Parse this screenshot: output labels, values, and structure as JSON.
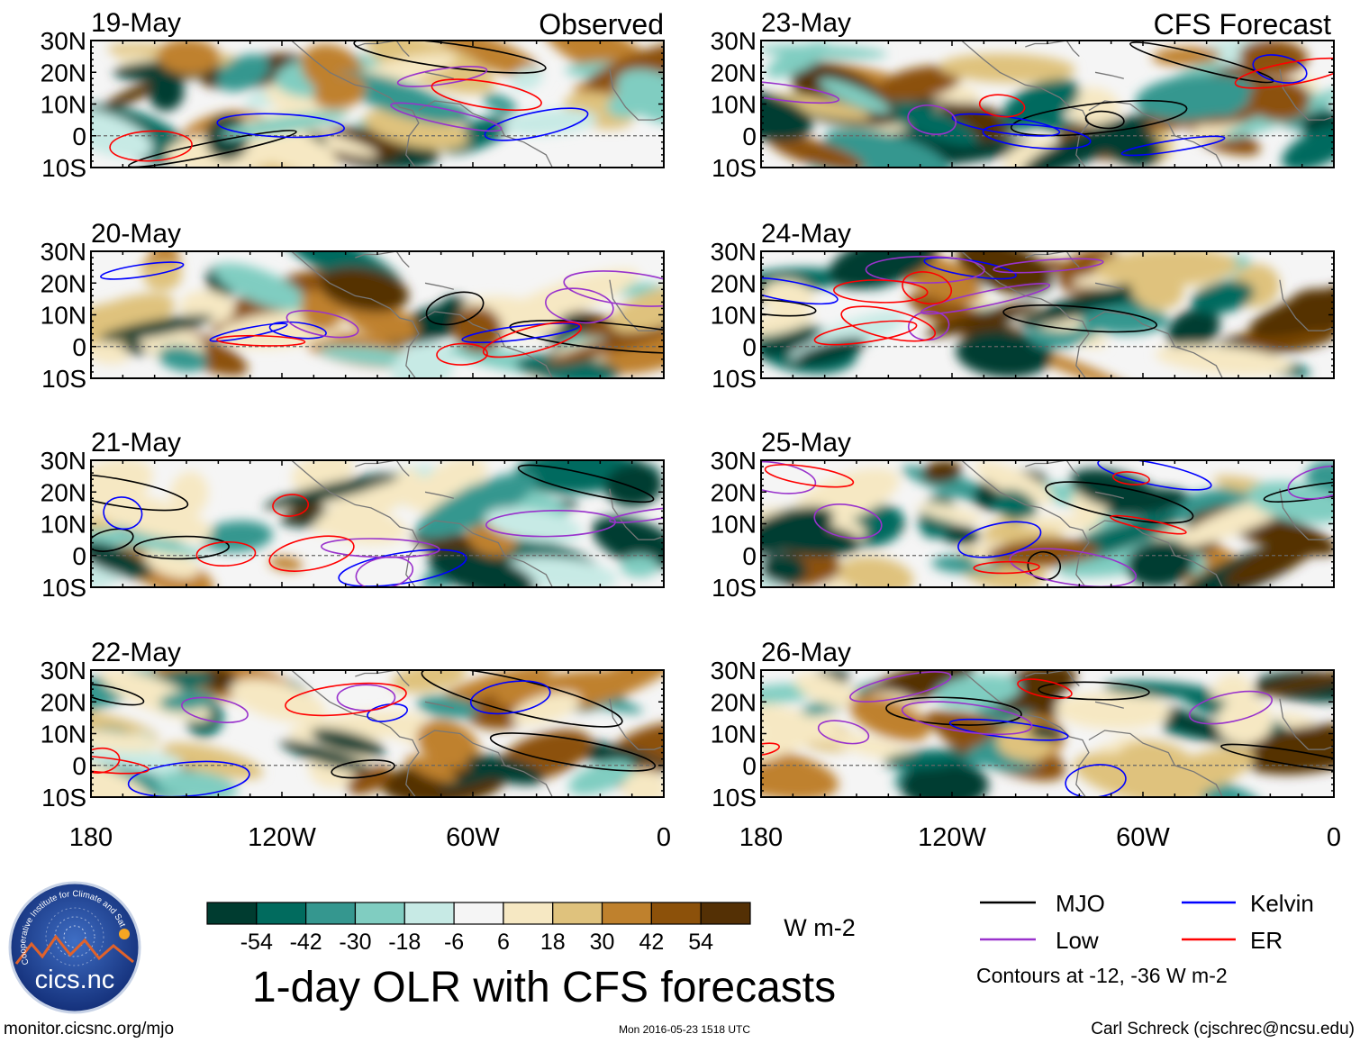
{
  "chart_data": {
    "type": "heatmap",
    "title": "1-day OLR with CFS forecasts",
    "column_labels": {
      "observed": "Observed",
      "forecast": "CFS Forecast"
    },
    "panels": [
      {
        "date": "19-May",
        "kind": "observed"
      },
      {
        "date": "20-May",
        "kind": "observed"
      },
      {
        "date": "21-May",
        "kind": "observed"
      },
      {
        "date": "22-May",
        "kind": "observed"
      },
      {
        "date": "23-May",
        "kind": "forecast"
      },
      {
        "date": "24-May",
        "kind": "forecast"
      },
      {
        "date": "25-May",
        "kind": "forecast"
      },
      {
        "date": "26-May",
        "kind": "forecast"
      }
    ],
    "x_axis": {
      "range": [
        -180,
        0
      ],
      "ticks": [
        -180,
        -120,
        -60,
        0
      ],
      "tick_labels": [
        "180",
        "120W",
        "60W",
        "0"
      ]
    },
    "y_axis": {
      "range": [
        -10,
        30
      ],
      "ticks": [
        30,
        20,
        10,
        0,
        -10
      ],
      "tick_labels": [
        "30N",
        "20N",
        "10N",
        "0",
        "10S"
      ]
    },
    "colorbar": {
      "levels": [
        -54,
        -42,
        -30,
        -18,
        -6,
        6,
        18,
        30,
        42,
        54
      ],
      "labels": [
        "-54",
        "-42",
        "-30",
        "-18",
        "-6",
        "6",
        "18",
        "30",
        "42",
        "54"
      ],
      "colors": [
        "#003c30",
        "#016b5e",
        "#35978f",
        "#80cdc1",
        "#c7eae5",
        "#f5f5f5",
        "#f6e8c3",
        "#dfc27d",
        "#bf812d",
        "#8c510a",
        "#543005"
      ],
      "units": "W m-2"
    },
    "legend": {
      "items": [
        {
          "label": "MJO",
          "color": "#000000"
        },
        {
          "label": "Kelvin",
          "color": "#0000ff"
        },
        {
          "label": "Low",
          "color": "#9932cc"
        },
        {
          "label": "ER",
          "color": "#ff0000"
        }
      ],
      "note": "Contours at -12, -36 W m-2"
    }
  },
  "footer": {
    "website": "monitor.cicsnc.org/mjo",
    "timestamp": "Mon 2016-05-23 1518 UTC",
    "author": "Carl Schreck (cjschrec@ncsu.edu)"
  },
  "logo": {
    "text": "cics.nc",
    "ring_text": "Cooperative Institute for Climate and Satellites"
  }
}
